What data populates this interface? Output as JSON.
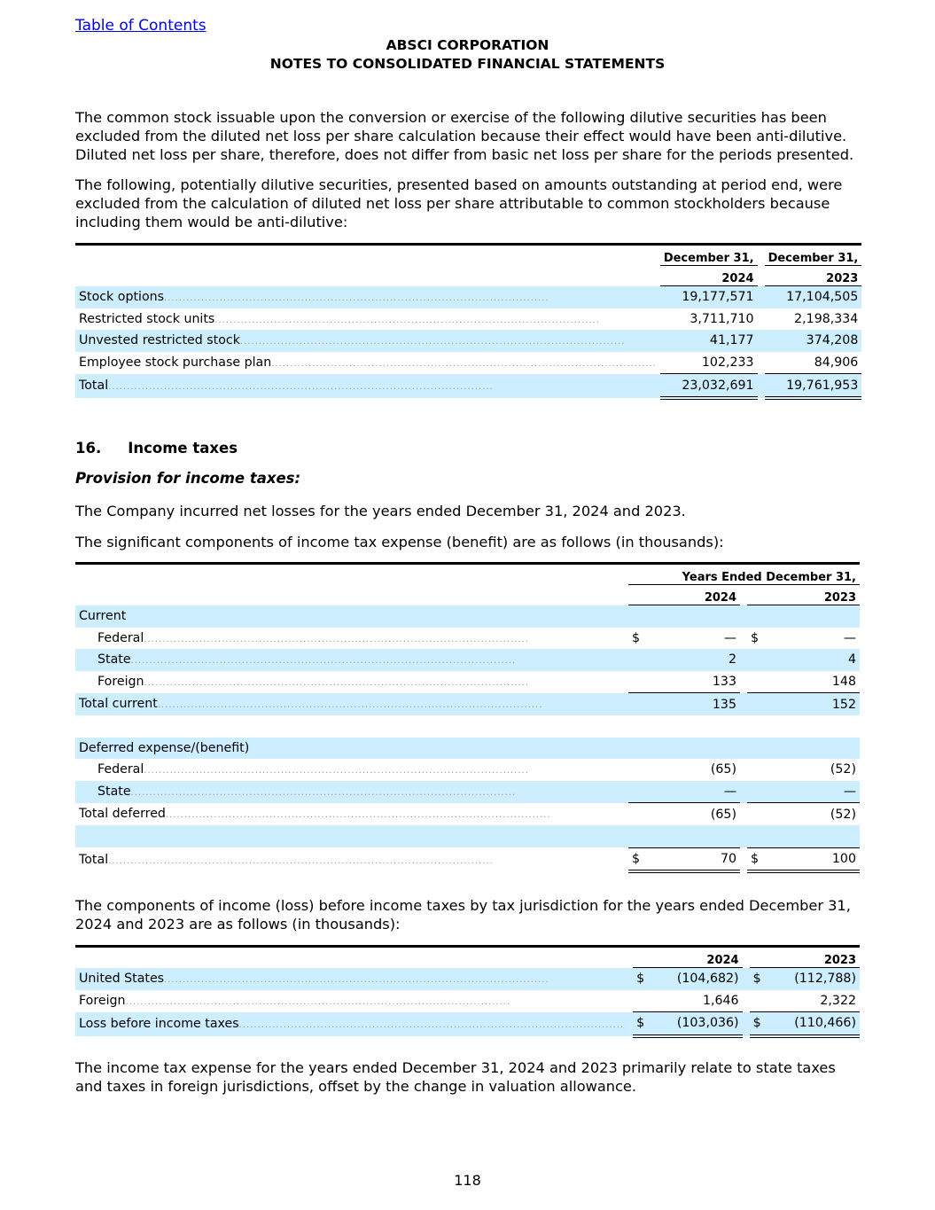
{
  "toc_link": "Table of Contents",
  "company": "ABSCI CORPORATION",
  "doc_title": "NOTES TO CONSOLIDATED FINANCIAL STATEMENTS",
  "para1": "The common stock issuable upon the conversion or exercise of the following dilutive securities has been excluded from the diluted net loss per share calculation because their effect would have been anti-dilutive. Diluted net loss per share, therefore, does not differ from basic net loss per share for the periods presented.",
  "para2": "The following, potentially dilutive securities, presented based on amounts outstanding at period end, were excluded from the calculation of diluted net loss per share attributable to common stockholders because including them would be anti-dilutive:",
  "table1": {
    "h1": "December 31,",
    "h2": "December 31,",
    "y1": "2024",
    "y2": "2023",
    "rows": [
      {
        "label": "Stock options",
        "a": "19,177,571",
        "b": "17,104,505"
      },
      {
        "label": "Restricted stock units",
        "a": "3,711,710",
        "b": "2,198,334"
      },
      {
        "label": "Unvested restricted stock",
        "a": "41,177",
        "b": "374,208"
      },
      {
        "label": "Employee stock purchase plan",
        "a": "102,233",
        "b": "84,906"
      },
      {
        "label": "Total",
        "a": "23,032,691",
        "b": "19,761,953"
      }
    ]
  },
  "section_num": "16.",
  "section_title": "Income taxes",
  "subheading": "Provision for income taxes:",
  "para3": "The Company incurred net losses for the years ended December 31, 2024 and 2023.",
  "para4": "The significant components of income tax expense (benefit) are as follows (in thousands):",
  "table2": {
    "header": "Years Ended December 31,",
    "y1": "2024",
    "y2": "2023",
    "current": "Current",
    "federal": "Federal",
    "state": "State",
    "foreign": "Foreign",
    "total_current": "Total current",
    "deferred": "Deferred expense/(benefit)",
    "total_deferred": "Total deferred",
    "total": "Total",
    "dollar": "$",
    "cur_fed": [
      "—",
      "—"
    ],
    "cur_state": [
      "2",
      "4"
    ],
    "cur_foreign": [
      "133",
      "148"
    ],
    "cur_total": [
      "135",
      "152"
    ],
    "def_fed": [
      "(65)",
      "(52)"
    ],
    "def_state": [
      "—",
      "—"
    ],
    "def_total": [
      "(65)",
      "(52)"
    ],
    "grand": [
      "70",
      "100"
    ]
  },
  "para5": "The components of income (loss) before income taxes by tax jurisdiction for the years ended December 31, 2024 and 2023 are as follows (in thousands):",
  "table3": {
    "y1": "2024",
    "y2": "2023",
    "dollar": "$",
    "rows": [
      {
        "label": "United States",
        "a": "(104,682)",
        "b": "(112,788)"
      },
      {
        "label": "Foreign",
        "a": "1,646",
        "b": "2,322"
      },
      {
        "label": "Loss before income taxes",
        "a": "(103,036)",
        "b": "(110,466)"
      }
    ]
  },
  "para6": "The income tax expense for the years ended December 31, 2024 and 2023 primarily relate to state taxes and taxes in foreign jurisdictions, offset by the change in valuation allowance.",
  "page_number": "118"
}
